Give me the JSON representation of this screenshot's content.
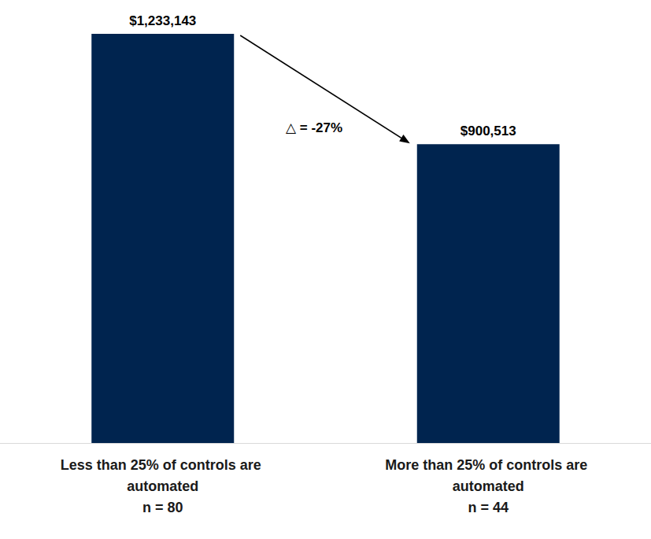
{
  "chart_data": {
    "type": "bar",
    "categories": [
      "Less than 25% of controls are automated",
      "More than 25% of controls are automated"
    ],
    "category_notes": [
      "n = 80",
      "n = 44"
    ],
    "values": [
      1233143,
      900513
    ],
    "value_labels": [
      "$1,233,143",
      "$900,513"
    ],
    "color": "#00244f",
    "ylim": [
      0,
      1233143
    ],
    "grid": false,
    "data_labels": true,
    "tick_labels": "x",
    "annotation": "△ = -27%"
  }
}
